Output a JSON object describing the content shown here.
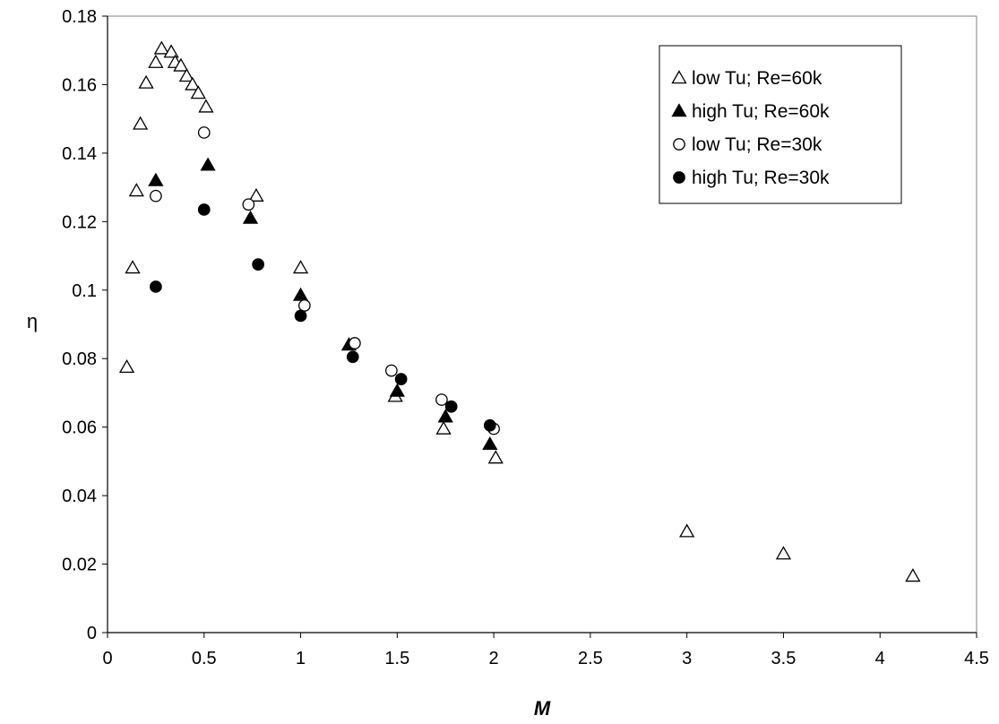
{
  "chart_data": {
    "type": "scatter",
    "title": "",
    "xlabel": "M",
    "ylabel": "η",
    "xlim": [
      0,
      4.5
    ],
    "ylim": [
      0,
      0.18
    ],
    "xticks": [
      "0",
      "0.5",
      "1",
      "1.5",
      "2",
      "2.5",
      "3",
      "3.5",
      "4",
      "4.5"
    ],
    "yticks": [
      "0",
      "0.02",
      "0.04",
      "0.06",
      "0.08",
      "0.1",
      "0.12",
      "0.14",
      "0.16",
      "0.18"
    ],
    "xtick_values": [
      0,
      0.5,
      1,
      1.5,
      2,
      2.5,
      3,
      3.5,
      4,
      4.5
    ],
    "ytick_values": [
      0,
      0.02,
      0.04,
      0.06,
      0.08,
      0.1,
      0.12,
      0.14,
      0.16,
      0.18
    ],
    "grid": false,
    "legend_position": "top-right",
    "series": [
      {
        "name": "low Tu; Re=60k",
        "marker": "triangle-open",
        "points": [
          [
            0.1,
            0.0775
          ],
          [
            0.13,
            0.1065
          ],
          [
            0.15,
            0.129
          ],
          [
            0.17,
            0.1485
          ],
          [
            0.2,
            0.1605
          ],
          [
            0.25,
            0.1665
          ],
          [
            0.28,
            0.1705
          ],
          [
            0.33,
            0.1695
          ],
          [
            0.35,
            0.1665
          ],
          [
            0.38,
            0.1655
          ],
          [
            0.41,
            0.1625
          ],
          [
            0.44,
            0.16
          ],
          [
            0.47,
            0.1575
          ],
          [
            0.51,
            0.1535
          ],
          [
            0.77,
            0.1275
          ],
          [
            1.0,
            0.1065
          ],
          [
            1.49,
            0.069
          ],
          [
            1.74,
            0.0595
          ],
          [
            2.01,
            0.051
          ],
          [
            3.0,
            0.0295
          ],
          [
            3.5,
            0.023
          ],
          [
            4.17,
            0.0165
          ]
        ]
      },
      {
        "name": "high Tu; Re=60k",
        "marker": "triangle-filled",
        "points": [
          [
            0.25,
            0.132
          ],
          [
            0.52,
            0.1365
          ],
          [
            0.74,
            0.121
          ],
          [
            1.0,
            0.0985
          ],
          [
            1.25,
            0.084
          ],
          [
            1.5,
            0.0705
          ],
          [
            1.75,
            0.063
          ],
          [
            1.98,
            0.055
          ]
        ]
      },
      {
        "name": "low Tu; Re=30k",
        "marker": "circle-open",
        "points": [
          [
            0.25,
            0.1275
          ],
          [
            0.5,
            0.146
          ],
          [
            0.73,
            0.125
          ],
          [
            1.02,
            0.0955
          ],
          [
            1.28,
            0.0845
          ],
          [
            1.47,
            0.0765
          ],
          [
            1.73,
            0.068
          ],
          [
            2.0,
            0.0595
          ]
        ]
      },
      {
        "name": "high Tu; Re=30k",
        "marker": "circle-filled",
        "points": [
          [
            0.25,
            0.101
          ],
          [
            0.5,
            0.1235
          ],
          [
            0.78,
            0.1075
          ],
          [
            1.0,
            0.0925
          ],
          [
            1.27,
            0.0805
          ],
          [
            1.52,
            0.074
          ],
          [
            1.78,
            0.066
          ],
          [
            1.98,
            0.0605
          ]
        ]
      }
    ]
  }
}
